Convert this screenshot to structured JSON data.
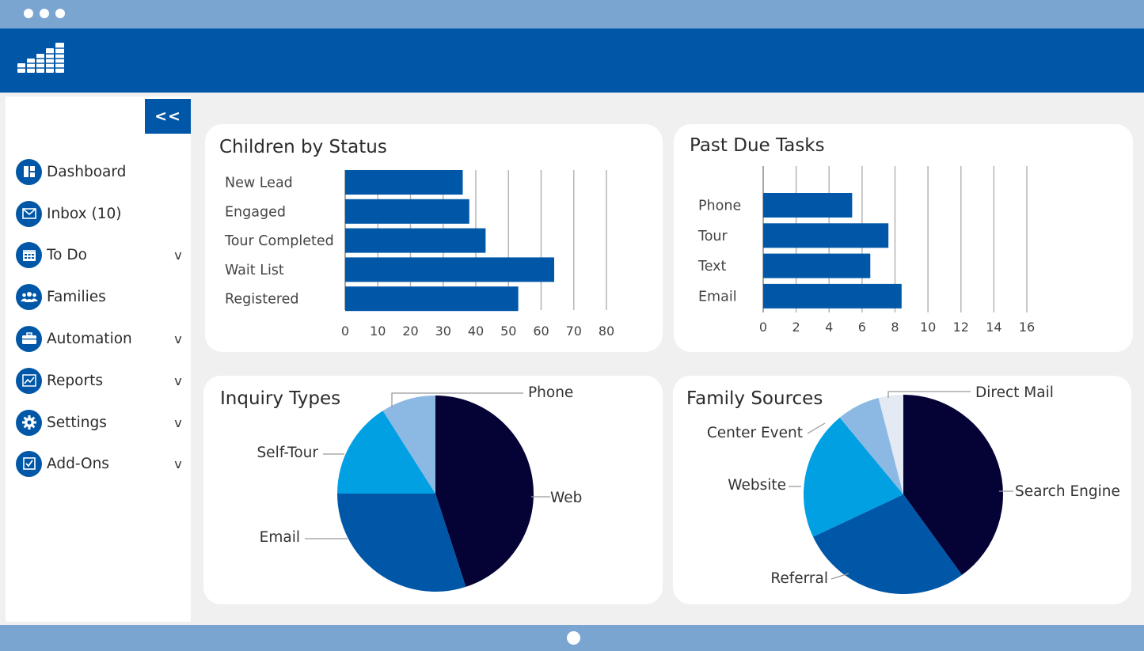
{
  "sidebar": {
    "collapse_label": "<<",
    "items": [
      {
        "label": "Dashboard",
        "icon": "dashboard-icon",
        "has_submenu": false
      },
      {
        "label": "Inbox (10)",
        "icon": "envelope-icon",
        "has_submenu": false
      },
      {
        "label": "To Do",
        "icon": "calendar-icon",
        "has_submenu": true
      },
      {
        "label": "Families",
        "icon": "people-icon",
        "has_submenu": false
      },
      {
        "label": "Automation",
        "icon": "briefcase-icon",
        "has_submenu": true
      },
      {
        "label": "Reports",
        "icon": "chart-line-icon",
        "has_submenu": true
      },
      {
        "label": "Settings",
        "icon": "gear-icon",
        "has_submenu": true
      },
      {
        "label": "Add-Ons",
        "icon": "checkbox-icon",
        "has_submenu": true
      }
    ],
    "submenu_glyph": "v"
  },
  "colors": {
    "brand": "#0057A8",
    "frame": "#7BA5D1",
    "navy": "#050336",
    "sky": "#00A0E3",
    "light_blue": "#8BB9E3",
    "pale": "#E4EAF4"
  },
  "chart_data": [
    {
      "type": "bar",
      "title": "Children by Status",
      "orientation": "horizontal",
      "categories": [
        "New Lead",
        "Engaged",
        "Tour Completed",
        "Wait List",
        "Registered"
      ],
      "values": [
        36,
        38,
        43,
        64,
        53
      ],
      "xticks": [
        "0",
        "10",
        "20",
        "30",
        "40",
        "50",
        "60",
        "70",
        "80"
      ],
      "xlim": [
        0,
        80
      ],
      "grid": true
    },
    {
      "type": "bar",
      "title": "Past Due Tasks",
      "orientation": "horizontal",
      "categories": [
        "Phone",
        "Tour",
        "Text",
        "Email"
      ],
      "values": [
        5.4,
        7.6,
        6.5,
        8.4
      ],
      "xticks": [
        "0",
        "2",
        "4",
        "6",
        "8",
        "10",
        "12",
        "14",
        "16"
      ],
      "xlim": [
        0,
        16
      ],
      "grid": true
    },
    {
      "type": "pie",
      "title": "Inquiry Types",
      "slices": [
        {
          "label": "Web",
          "value": 45,
          "color": "#050336"
        },
        {
          "label": "Email",
          "value": 30,
          "color": "#0057A8"
        },
        {
          "label": "Self-Tour",
          "value": 16,
          "color": "#00A0E3"
        },
        {
          "label": "Phone",
          "value": 9,
          "color": "#8BB9E3"
        }
      ]
    },
    {
      "type": "pie",
      "title": "Family Sources",
      "slices": [
        {
          "label": "Search Engine",
          "value": 40,
          "color": "#050336"
        },
        {
          "label": "Referral",
          "value": 28,
          "color": "#0057A8"
        },
        {
          "label": "Website",
          "value": 21,
          "color": "#00A0E3"
        },
        {
          "label": "Center Event",
          "value": 7,
          "color": "#8BB9E3"
        },
        {
          "label": "Direct Mail",
          "value": 4,
          "color": "#E4EAF4"
        }
      ]
    }
  ]
}
